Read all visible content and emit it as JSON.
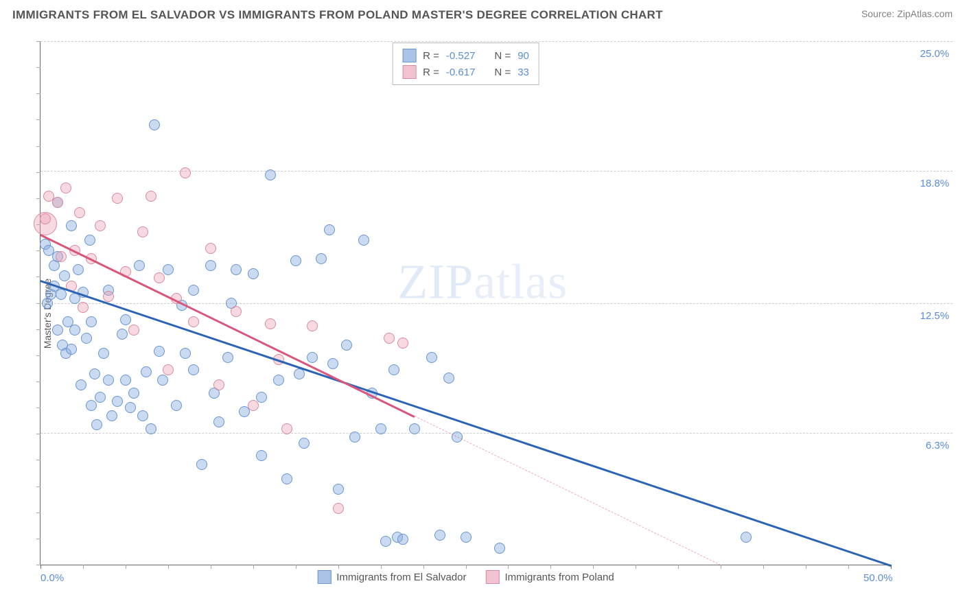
{
  "title": "IMMIGRANTS FROM EL SALVADOR VS IMMIGRANTS FROM POLAND MASTER'S DEGREE CORRELATION CHART",
  "source": "Source: ZipAtlas.com",
  "watermark": "ZIPatlas",
  "y_axis_label": "Master's Degree",
  "chart": {
    "type": "scatter",
    "xlim": [
      0,
      50
    ],
    "ylim": [
      0,
      25
    ],
    "x_ticks_minor_step": 2.5,
    "y_ticks_minor_step": 1.25,
    "y_grid": [
      6.3,
      12.5,
      18.8,
      25.0
    ],
    "y_grid_labels": [
      "6.3%",
      "12.5%",
      "18.8%",
      "25.0%"
    ],
    "x_tick_labels": [
      {
        "pos": 0,
        "label": "0.0%"
      },
      {
        "pos": 50,
        "label": "50.0%"
      }
    ],
    "background_color": "#ffffff",
    "grid_color": "#cccccc",
    "axis_color": "#666666",
    "tick_label_color": "#5b8dd6",
    "series": [
      {
        "name": "Immigrants from El Salvador",
        "color_fill": "rgba(136,172,224,0.45)",
        "color_stroke": "#6a95cf",
        "swatch_fill": "#aac3e6",
        "swatch_border": "#6a95cf",
        "R": "-0.527",
        "N": "90",
        "marker_radius": 8,
        "trend": {
          "x1": 0,
          "y1": 13.6,
          "x2": 50,
          "y2": 0.0,
          "solid_until_x": 50,
          "color": "#2b64b5"
        },
        "points": [
          [
            0.3,
            15.3
          ],
          [
            0.5,
            15.0
          ],
          [
            0.6,
            12.9
          ],
          [
            0.8,
            13.3
          ],
          [
            0.8,
            14.3
          ],
          [
            1.0,
            14.7
          ],
          [
            1.0,
            17.3
          ],
          [
            1.0,
            11.2
          ],
          [
            1.2,
            12.9
          ],
          [
            1.3,
            10.5
          ],
          [
            1.4,
            13.8
          ],
          [
            1.5,
            10.1
          ],
          [
            1.6,
            11.6
          ],
          [
            1.8,
            16.2
          ],
          [
            1.8,
            10.3
          ],
          [
            2.0,
            11.2
          ],
          [
            2.0,
            12.7
          ],
          [
            2.2,
            14.1
          ],
          [
            2.4,
            8.6
          ],
          [
            2.5,
            13.0
          ],
          [
            2.7,
            10.8
          ],
          [
            3.0,
            11.6
          ],
          [
            3.0,
            7.6
          ],
          [
            3.2,
            9.1
          ],
          [
            3.5,
            8.0
          ],
          [
            3.7,
            10.1
          ],
          [
            4.0,
            8.8
          ],
          [
            4.0,
            13.1
          ],
          [
            4.2,
            7.1
          ],
          [
            4.5,
            7.8
          ],
          [
            5.0,
            11.7
          ],
          [
            5.0,
            8.8
          ],
          [
            5.3,
            7.5
          ],
          [
            5.5,
            8.2
          ],
          [
            5.8,
            14.3
          ],
          [
            6.0,
            7.1
          ],
          [
            6.5,
            6.5
          ],
          [
            6.7,
            21.0
          ],
          [
            7.0,
            10.2
          ],
          [
            7.2,
            8.8
          ],
          [
            7.5,
            14.1
          ],
          [
            8.0,
            7.6
          ],
          [
            8.3,
            12.4
          ],
          [
            8.5,
            10.1
          ],
          [
            9.0,
            9.3
          ],
          [
            9.0,
            13.1
          ],
          [
            9.5,
            4.8
          ],
          [
            10.0,
            14.3
          ],
          [
            10.2,
            8.2
          ],
          [
            10.5,
            6.8
          ],
          [
            11.0,
            9.9
          ],
          [
            11.2,
            12.5
          ],
          [
            11.5,
            14.1
          ],
          [
            12.0,
            7.3
          ],
          [
            12.5,
            13.9
          ],
          [
            13.0,
            5.2
          ],
          [
            13.0,
            8.0
          ],
          [
            13.5,
            18.6
          ],
          [
            14.0,
            8.8
          ],
          [
            14.5,
            4.1
          ],
          [
            15.0,
            14.5
          ],
          [
            15.2,
            9.1
          ],
          [
            15.5,
            5.8
          ],
          [
            16.0,
            9.9
          ],
          [
            16.5,
            14.6
          ],
          [
            17.0,
            16.0
          ],
          [
            17.5,
            3.6
          ],
          [
            18.0,
            10.5
          ],
          [
            18.5,
            6.1
          ],
          [
            19.0,
            15.5
          ],
          [
            19.5,
            8.2
          ],
          [
            20.0,
            6.5
          ],
          [
            20.3,
            1.1
          ],
          [
            20.8,
            9.3
          ],
          [
            21.0,
            1.3
          ],
          [
            21.3,
            1.2
          ],
          [
            22.0,
            6.5
          ],
          [
            23.0,
            9.9
          ],
          [
            23.5,
            1.4
          ],
          [
            24.0,
            8.9
          ],
          [
            24.5,
            6.1
          ],
          [
            25.0,
            1.3
          ],
          [
            27.0,
            0.8
          ],
          [
            41.5,
            1.3
          ],
          [
            17.2,
            9.6
          ],
          [
            6.2,
            9.2
          ],
          [
            4.8,
            11.0
          ],
          [
            2.9,
            15.5
          ],
          [
            0.4,
            12.5
          ],
          [
            3.3,
            6.7
          ]
        ]
      },
      {
        "name": "Immigrants from Poland",
        "color_fill": "rgba(236,160,180,0.40)",
        "color_stroke": "#d98aa2",
        "swatch_fill": "#f1c3d0",
        "swatch_border": "#d98aa2",
        "R": "-0.617",
        "N": "33",
        "marker_radius": 8,
        "trend": {
          "x1": 0,
          "y1": 15.8,
          "x2": 40,
          "y2": 0.0,
          "solid_until_x": 22,
          "color": "#d9567a"
        },
        "points": [
          [
            0.3,
            16.5
          ],
          [
            0.5,
            17.6
          ],
          [
            1.0,
            17.3
          ],
          [
            1.2,
            14.7
          ],
          [
            1.5,
            18.0
          ],
          [
            1.8,
            13.3
          ],
          [
            2.0,
            15.0
          ],
          [
            2.3,
            16.8
          ],
          [
            2.5,
            12.3
          ],
          [
            3.0,
            14.6
          ],
          [
            3.5,
            16.2
          ],
          [
            4.0,
            12.8
          ],
          [
            4.5,
            17.5
          ],
          [
            5.0,
            14.0
          ],
          [
            5.5,
            11.2
          ],
          [
            6.0,
            15.9
          ],
          [
            6.5,
            17.6
          ],
          [
            7.0,
            13.7
          ],
          [
            7.5,
            9.3
          ],
          [
            8.0,
            12.7
          ],
          [
            8.5,
            18.7
          ],
          [
            9.0,
            11.6
          ],
          [
            10.0,
            15.1
          ],
          [
            10.5,
            8.6
          ],
          [
            11.5,
            12.1
          ],
          [
            12.5,
            7.6
          ],
          [
            13.5,
            11.5
          ],
          [
            14.0,
            9.8
          ],
          [
            14.5,
            6.5
          ],
          [
            16.0,
            11.4
          ],
          [
            17.5,
            2.7
          ],
          [
            20.5,
            10.8
          ],
          [
            21.3,
            10.6
          ]
        ],
        "big_point": {
          "x": 0.3,
          "y": 16.3,
          "r": 17
        }
      }
    ]
  },
  "legend_top": {
    "rows": [
      {
        "series": 0,
        "R_label": "R =",
        "N_label": "N ="
      },
      {
        "series": 1,
        "R_label": "R =",
        "N_label": "N ="
      }
    ]
  }
}
